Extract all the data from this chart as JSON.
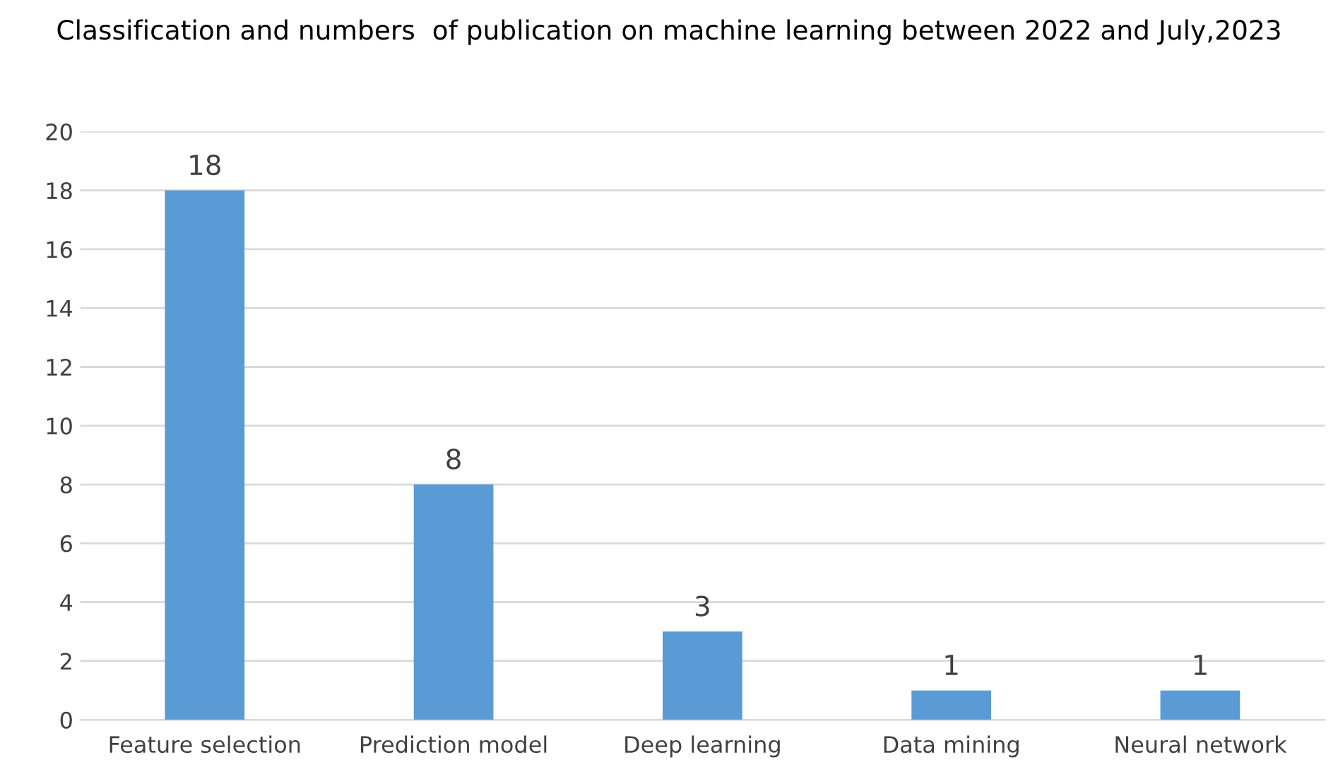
{
  "chart_data": {
    "type": "bar",
    "title": "Classification and numbers  of publication on machine learning between 2022 and July,2023",
    "categories": [
      "Feature selection",
      "Prediction model",
      "Deep learning",
      "Data mining",
      "Neural network"
    ],
    "values": [
      18,
      8,
      3,
      1,
      1
    ],
    "color": "#5b9bd5",
    "ylim": [
      0,
      20
    ],
    "yticks": [
      0,
      2,
      4,
      6,
      8,
      10,
      12,
      14,
      16,
      18,
      20
    ],
    "grid": "y",
    "data_labels": true,
    "legend": false
  }
}
